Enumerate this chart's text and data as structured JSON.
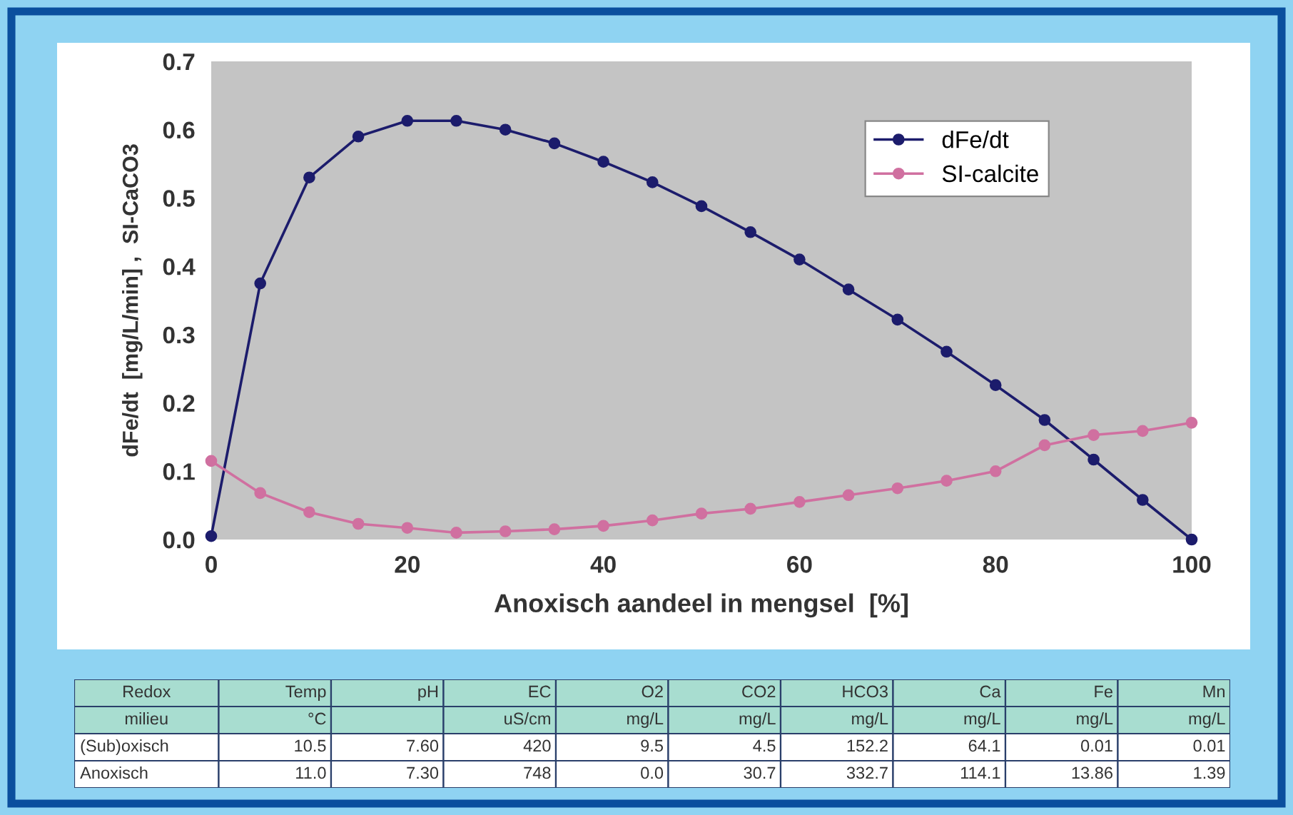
{
  "chart_data": [
    {
      "type": "line",
      "xlabel": "Anoxisch aandeel in mengsel  [%]",
      "ylabel": "dFe/dt  [mg/L/min] ,  SI-CaCO3",
      "x": [
        0,
        5,
        10,
        15,
        20,
        25,
        30,
        35,
        40,
        45,
        50,
        55,
        60,
        65,
        70,
        75,
        80,
        85,
        90,
        95,
        100
      ],
      "series": [
        {
          "name": "dFe/dt",
          "color": "#1c1c6c",
          "marker": "circle",
          "line_style": "solid",
          "values": [
            0.005,
            0.375,
            0.53,
            0.59,
            0.613,
            0.613,
            0.6,
            0.58,
            0.553,
            0.523,
            0.488,
            0.45,
            0.41,
            0.366,
            0.322,
            0.275,
            0.226,
            0.175,
            0.117,
            0.058,
            0.0
          ]
        },
        {
          "name": "SI-calcite",
          "color": "#d070a0",
          "marker": "circle",
          "line_style": "solid",
          "values": [
            0.115,
            0.068,
            0.04,
            0.023,
            0.017,
            0.01,
            0.012,
            0.015,
            0.02,
            0.028,
            0.038,
            0.045,
            0.055,
            0.065,
            0.075,
            0.086,
            0.1,
            0.138,
            0.153,
            0.159,
            0.171
          ]
        }
      ],
      "xlim": [
        0,
        100
      ],
      "xticks": [
        0,
        20,
        40,
        60,
        80,
        100
      ],
      "ylim": [
        0,
        0.7
      ],
      "yticks": [
        {
          "value": 0,
          "label": "0.0"
        },
        0.1,
        0.2,
        0.3,
        0.4,
        0.5,
        0.6,
        0.7
      ],
      "grid": false,
      "legend": "top right"
    },
    {
      "type": "other",
      "annotations": [
        "Redox",
        "Temp",
        "pH",
        "EC",
        "O2",
        "CO2",
        "HCO3",
        "Ca",
        "Fe",
        "Mn",
        "milieu",
        "°C",
        null,
        "uS/cm",
        "mg/L",
        "mg/L",
        "mg/L",
        "mg/L",
        "mg/L",
        "mg/L",
        "(Sub)oxisch",
        "10.5",
        "7.60",
        "420",
        "9.5",
        "4.5",
        "152.2",
        "64.1",
        "0.01",
        "0.01",
        "Anoxisch",
        "11.0",
        "7.30",
        "748",
        "0.0",
        "30.7",
        "332.7",
        "114.1",
        "13.86",
        "1.39"
      ]
    }
  ]
}
